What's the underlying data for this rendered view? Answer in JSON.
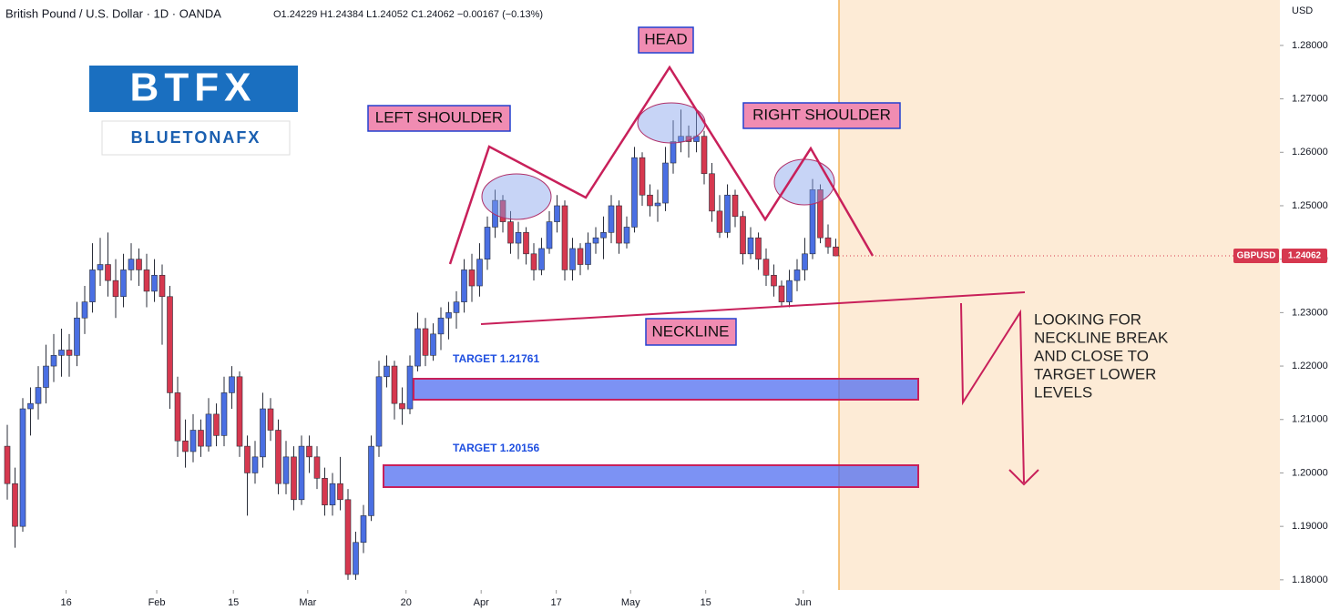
{
  "chart_data": {
    "type": "candlestick",
    "header": {
      "symbol": "British Pound / U.S. Dollar · 1D · OANDA",
      "ohlc": "O1.24229 H1.24384 L1.24052 C1.24062 −0.00167 (−0.13%)"
    },
    "currency": "USD",
    "logo": {
      "name": "BTFX",
      "subname": "BLUETONAFX"
    },
    "up_color": "#4a6fe3",
    "down_color": "#d6384f",
    "ylim": [
      1.1781,
      1.2885
    ],
    "yticks": [
      {
        "value": 1.18,
        "label": "1.18000"
      },
      {
        "value": 1.19,
        "label": "1.19000"
      },
      {
        "value": 1.2,
        "label": "1.20000"
      },
      {
        "value": 1.21,
        "label": "1.21000"
      },
      {
        "value": 1.22,
        "label": "1.22000"
      },
      {
        "value": 1.23,
        "label": "1.23000"
      },
      {
        "value": 1.24,
        "label": "1.24000"
      },
      {
        "value": 1.25,
        "label": "1.25000"
      },
      {
        "value": 1.26,
        "label": "1.26000"
      },
      {
        "value": 1.27,
        "label": "1.27000"
      },
      {
        "value": 1.28,
        "label": "1.28000"
      }
    ],
    "xticks": [
      {
        "value": 7.6,
        "label": "16"
      },
      {
        "value": 19.3,
        "label": "Feb"
      },
      {
        "value": 29.2,
        "label": "15"
      },
      {
        "value": 38.8,
        "label": "Mar"
      },
      {
        "value": 51.5,
        "label": "20"
      },
      {
        "value": 61.2,
        "label": "Apr"
      },
      {
        "value": 70.9,
        "label": "17"
      },
      {
        "value": 80.5,
        "label": "May"
      },
      {
        "value": 90.2,
        "label": "15"
      },
      {
        "value": 102.8,
        "label": "Jun"
      }
    ],
    "price_tag": {
      "symbol": "GBPUSD",
      "value": 1.24062,
      "label": "1.24062"
    },
    "annotations": [
      "LEFT SHOULDER",
      "HEAD",
      "RIGHT SHOULDER",
      "NECKLINE"
    ],
    "targets": [
      {
        "value": 1.21761,
        "label": "TARGET 1.21761"
      },
      {
        "value": 1.20156,
        "label": "TARGET 1.20156"
      }
    ],
    "note": [
      "LOOKING FOR",
      "NECKLINE BREAK",
      "AND CLOSE TO",
      "TARGET LOWER",
      "LEVELS"
    ],
    "candles": [
      [
        1.205,
        1.209,
        1.195,
        1.198
      ],
      [
        1.198,
        1.201,
        1.186,
        1.19
      ],
      [
        1.19,
        1.214,
        1.189,
        1.212
      ],
      [
        1.212,
        1.216,
        1.207,
        1.213
      ],
      [
        1.213,
        1.22,
        1.21,
        1.216
      ],
      [
        1.216,
        1.224,
        1.213,
        1.22
      ],
      [
        1.22,
        1.226,
        1.217,
        1.222
      ],
      [
        1.222,
        1.227,
        1.218,
        1.223
      ],
      [
        1.223,
        1.226,
        1.218,
        1.222
      ],
      [
        1.222,
        1.232,
        1.22,
        1.229
      ],
      [
        1.229,
        1.235,
        1.226,
        1.232
      ],
      [
        1.232,
        1.243,
        1.23,
        1.238
      ],
      [
        1.238,
        1.244,
        1.235,
        1.239
      ],
      [
        1.239,
        1.245,
        1.233,
        1.236
      ],
      [
        1.236,
        1.24,
        1.229,
        1.233
      ],
      [
        1.233,
        1.241,
        1.231,
        1.238
      ],
      [
        1.238,
        1.243,
        1.236,
        1.24
      ],
      [
        1.24,
        1.242,
        1.235,
        1.238
      ],
      [
        1.238,
        1.241,
        1.231,
        1.234
      ],
      [
        1.234,
        1.24,
        1.232,
        1.237
      ],
      [
        1.237,
        1.239,
        1.224,
        1.233
      ],
      [
        1.233,
        1.235,
        1.212,
        1.215
      ],
      [
        1.215,
        1.218,
        1.203,
        1.206
      ],
      [
        1.206,
        1.21,
        1.201,
        1.204
      ],
      [
        1.204,
        1.211,
        1.202,
        1.208
      ],
      [
        1.208,
        1.21,
        1.203,
        1.205
      ],
      [
        1.205,
        1.214,
        1.204,
        1.211
      ],
      [
        1.211,
        1.213,
        1.205,
        1.207
      ],
      [
        1.207,
        1.218,
        1.205,
        1.215
      ],
      [
        1.215,
        1.22,
        1.212,
        1.218
      ],
      [
        1.218,
        1.219,
        1.203,
        1.205
      ],
      [
        1.205,
        1.207,
        1.192,
        1.2
      ],
      [
        1.2,
        1.206,
        1.198,
        1.203
      ],
      [
        1.203,
        1.215,
        1.201,
        1.212
      ],
      [
        1.212,
        1.214,
        1.206,
        1.208
      ],
      [
        1.208,
        1.21,
        1.196,
        1.198
      ],
      [
        1.198,
        1.206,
        1.196,
        1.203
      ],
      [
        1.203,
        1.205,
        1.193,
        1.195
      ],
      [
        1.195,
        1.207,
        1.194,
        1.205
      ],
      [
        1.205,
        1.207,
        1.2,
        1.203
      ],
      [
        1.203,
        1.205,
        1.197,
        1.199
      ],
      [
        1.199,
        1.201,
        1.192,
        1.194
      ],
      [
        1.194,
        1.2,
        1.192,
        1.198
      ],
      [
        1.198,
        1.203,
        1.193,
        1.195
      ],
      [
        1.195,
        1.197,
        1.18,
        1.181
      ],
      [
        1.181,
        1.189,
        1.18,
        1.187
      ],
      [
        1.187,
        1.194,
        1.185,
        1.192
      ],
      [
        1.192,
        1.207,
        1.191,
        1.205
      ],
      [
        1.205,
        1.221,
        1.203,
        1.218
      ],
      [
        1.218,
        1.222,
        1.216,
        1.22
      ],
      [
        1.22,
        1.221,
        1.21,
        1.213
      ],
      [
        1.213,
        1.216,
        1.209,
        1.212
      ],
      [
        1.212,
        1.222,
        1.211,
        1.22
      ],
      [
        1.22,
        1.23,
        1.219,
        1.227
      ],
      [
        1.227,
        1.229,
        1.22,
        1.222
      ],
      [
        1.222,
        1.228,
        1.221,
        1.226
      ],
      [
        1.226,
        1.231,
        1.223,
        1.229
      ],
      [
        1.229,
        1.232,
        1.225,
        1.23
      ],
      [
        1.23,
        1.234,
        1.227,
        1.232
      ],
      [
        1.232,
        1.24,
        1.23,
        1.238
      ],
      [
        1.238,
        1.241,
        1.232,
        1.235
      ],
      [
        1.235,
        1.243,
        1.233,
        1.24
      ],
      [
        1.24,
        1.248,
        1.238,
        1.246
      ],
      [
        1.246,
        1.253,
        1.244,
        1.251
      ],
      [
        1.251,
        1.252,
        1.245,
        1.247
      ],
      [
        1.247,
        1.249,
        1.241,
        1.243
      ],
      [
        1.243,
        1.247,
        1.24,
        1.245
      ],
      [
        1.245,
        1.246,
        1.239,
        1.241
      ],
      [
        1.241,
        1.243,
        1.236,
        1.238
      ],
      [
        1.238,
        1.244,
        1.237,
        1.242
      ],
      [
        1.242,
        1.249,
        1.241,
        1.247
      ],
      [
        1.247,
        1.252,
        1.245,
        1.25
      ],
      [
        1.25,
        1.251,
        1.236,
        1.238
      ],
      [
        1.238,
        1.244,
        1.236,
        1.242
      ],
      [
        1.242,
        1.243,
        1.237,
        1.239
      ],
      [
        1.239,
        1.245,
        1.238,
        1.243
      ],
      [
        1.243,
        1.246,
        1.241,
        1.244
      ],
      [
        1.244,
        1.248,
        1.24,
        1.245
      ],
      [
        1.245,
        1.252,
        1.243,
        1.25
      ],
      [
        1.25,
        1.251,
        1.241,
        1.243
      ],
      [
        1.243,
        1.248,
        1.242,
        1.246
      ],
      [
        1.246,
        1.261,
        1.245,
        1.259
      ],
      [
        1.259,
        1.26,
        1.25,
        1.252
      ],
      [
        1.252,
        1.254,
        1.248,
        1.25
      ],
      [
        1.25,
        1.253,
        1.247,
        1.2505
      ],
      [
        1.2505,
        1.261,
        1.249,
        1.258
      ],
      [
        1.258,
        1.266,
        1.256,
        1.262
      ],
      [
        1.262,
        1.268,
        1.26,
        1.263
      ],
      [
        1.263,
        1.265,
        1.259,
        1.262
      ],
      [
        1.262,
        1.268,
        1.26,
        1.263
      ],
      [
        1.263,
        1.264,
        1.254,
        1.256
      ],
      [
        1.256,
        1.258,
        1.247,
        1.249
      ],
      [
        1.249,
        1.252,
        1.244,
        1.245
      ],
      [
        1.245,
        1.254,
        1.244,
        1.252
      ],
      [
        1.252,
        1.253,
        1.246,
        1.248
      ],
      [
        1.248,
        1.249,
        1.239,
        1.241
      ],
      [
        1.241,
        1.246,
        1.24,
        1.244
      ],
      [
        1.244,
        1.245,
        1.238,
        1.24
      ],
      [
        1.24,
        1.242,
        1.235,
        1.237
      ],
      [
        1.237,
        1.239,
        1.233,
        1.235
      ],
      [
        1.235,
        1.236,
        1.231,
        1.232
      ],
      [
        1.232,
        1.238,
        1.231,
        1.236
      ],
      [
        1.236,
        1.24,
        1.234,
        1.238
      ],
      [
        1.238,
        1.244,
        1.236,
        1.241
      ],
      [
        1.241,
        1.255,
        1.24,
        1.253
      ],
      [
        1.253,
        1.254,
        1.243,
        1.244
      ],
      [
        1.244,
        1.2465,
        1.241,
        1.24229
      ],
      [
        1.24229,
        1.24384,
        1.24052,
        1.24062
      ]
    ]
  }
}
